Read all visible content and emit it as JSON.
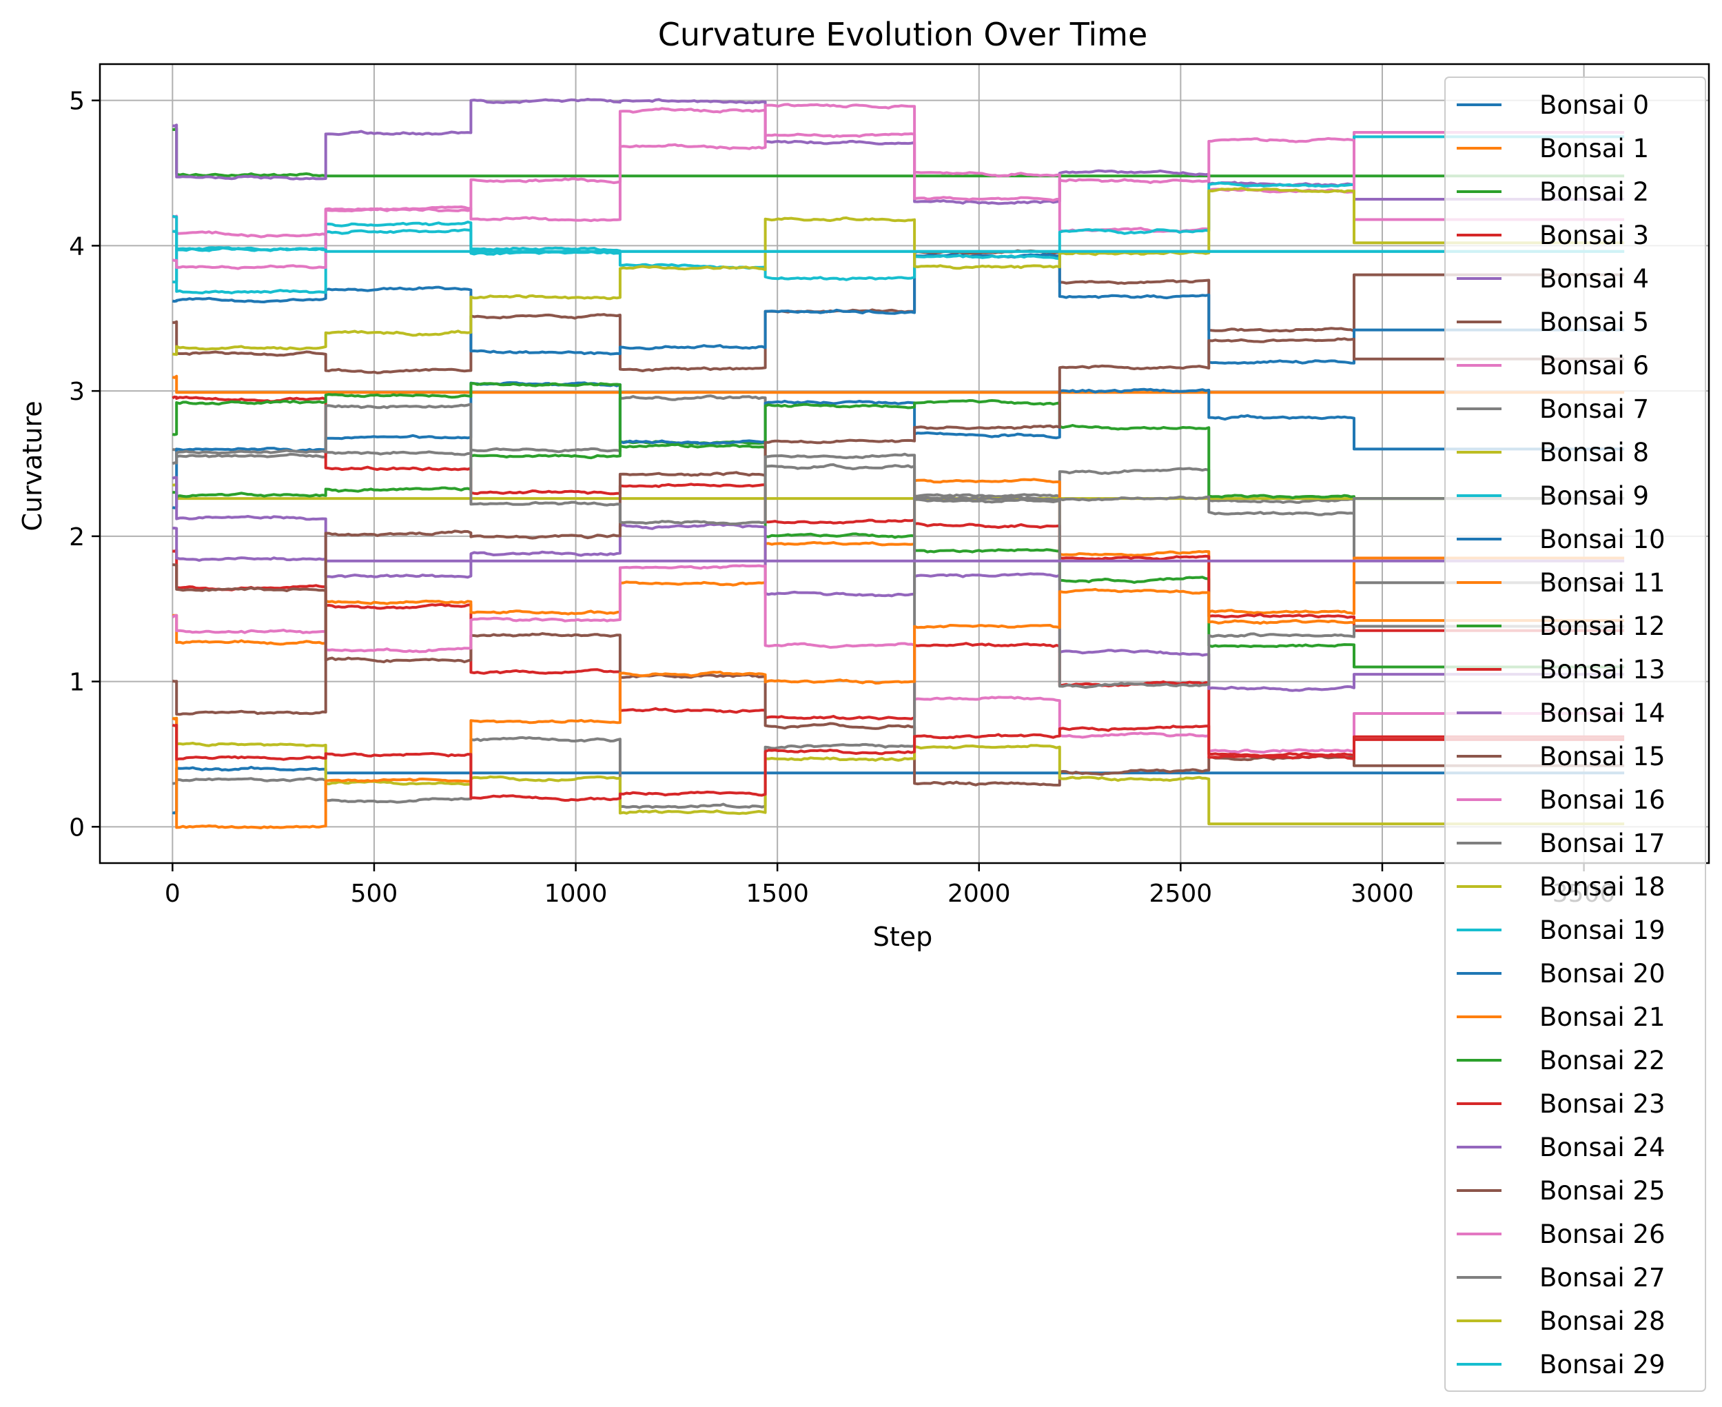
{
  "chart_data": {
    "type": "line",
    "title": "Curvature Evolution Over Time",
    "xlabel": "Step",
    "ylabel": "Curvature",
    "xlim": [
      -180,
      3810
    ],
    "ylim": [
      -0.25,
      5.25
    ],
    "xticks": [
      0,
      500,
      1000,
      1500,
      2000,
      2500,
      3000,
      3500
    ],
    "yticks": [
      0,
      1,
      2,
      3,
      4,
      5
    ],
    "grid": true,
    "legend_position": "right",
    "segment_boundaries": [
      0,
      10,
      380,
      740,
      1110,
      1470,
      1840,
      2200,
      2570,
      2930,
      3600
    ],
    "series": [
      {
        "name": "Bonsai 0",
        "color": "#1f77b4",
        "values": [
          0.1,
          0.4,
          0.37,
          0.37,
          0.37,
          0.37,
          0.37,
          0.37,
          0.37,
          0.37
        ]
      },
      {
        "name": "Bonsai 1",
        "color": "#ff7f0e",
        "values": [
          3.1,
          2.99,
          2.99,
          2.99,
          2.99,
          2.99,
          2.99,
          2.99,
          2.99,
          2.99
        ]
      },
      {
        "name": "Bonsai 2",
        "color": "#2ca02c",
        "values": [
          4.8,
          4.49,
          4.48,
          4.48,
          4.48,
          4.48,
          4.48,
          4.48,
          4.48,
          4.48
        ]
      },
      {
        "name": "Bonsai 3",
        "color": "#d62728",
        "values": [
          1.9,
          1.65,
          1.52,
          1.07,
          0.8,
          0.75,
          1.25,
          0.98,
          0.5,
          0.6
        ]
      },
      {
        "name": "Bonsai 4",
        "color": "#9467bd",
        "values": [
          4.83,
          4.47,
          4.77,
          5.0,
          4.99,
          4.71,
          4.3,
          4.5,
          4.42,
          4.32
        ]
      },
      {
        "name": "Bonsai 5",
        "color": "#8c564b",
        "values": [
          3.47,
          3.26,
          3.14,
          3.52,
          3.15,
          3.55,
          3.95,
          3.75,
          3.42,
          3.8
        ]
      },
      {
        "name": "Bonsai 6",
        "color": "#e377c2",
        "values": [
          4.2,
          4.08,
          4.25,
          4.45,
          4.93,
          4.76,
          4.5,
          4.1,
          4.38,
          4.78
        ]
      },
      {
        "name": "Bonsai 7",
        "color": "#7f7f7f",
        "values": [
          2.6,
          2.55,
          2.58,
          2.6,
          2.95,
          2.48,
          2.28,
          2.45,
          2.25,
          1.68
        ]
      },
      {
        "name": "Bonsai 8",
        "color": "#bcbd22",
        "values": [
          2.35,
          2.26,
          2.26,
          2.26,
          2.26,
          2.26,
          2.26,
          2.26,
          2.26,
          2.26
        ]
      },
      {
        "name": "Bonsai 9",
        "color": "#17becf",
        "values": [
          3.75,
          3.98,
          4.1,
          3.95,
          3.96,
          3.96,
          3.96,
          3.96,
          3.96,
          3.96
        ]
      },
      {
        "name": "Bonsai 10",
        "color": "#1f77b4",
        "values": [
          3.62,
          3.63,
          3.7,
          3.27,
          3.3,
          3.55,
          3.93,
          3.65,
          3.2,
          3.42
        ]
      },
      {
        "name": "Bonsai 11",
        "color": "#ff7f0e",
        "values": [
          1.45,
          1.27,
          1.55,
          1.48,
          1.68,
          1.95,
          2.38,
          1.88,
          1.48,
          1.85
        ]
      },
      {
        "name": "Bonsai 12",
        "color": "#2ca02c",
        "values": [
          2.3,
          2.28,
          2.32,
          2.55,
          2.65,
          2.0,
          1.9,
          1.7,
          1.25,
          1.1
        ]
      },
      {
        "name": "Bonsai 13",
        "color": "#d62728",
        "values": [
          2.95,
          2.95,
          2.47,
          2.3,
          2.35,
          2.1,
          2.08,
          1.85,
          1.45,
          1.35
        ]
      },
      {
        "name": "Bonsai 14",
        "color": "#9467bd",
        "values": [
          2.05,
          1.85,
          1.72,
          1.88,
          2.07,
          1.6,
          1.73,
          1.2,
          0.95,
          1.05
        ]
      },
      {
        "name": "Bonsai 15",
        "color": "#8c564b",
        "values": [
          1.8,
          1.63,
          1.15,
          1.32,
          1.03,
          0.7,
          0.3,
          0.38,
          0.48,
          0.42
        ]
      },
      {
        "name": "Bonsai 16",
        "color": "#e377c2",
        "values": [
          1.45,
          1.35,
          1.22,
          1.42,
          1.78,
          1.25,
          0.88,
          0.63,
          0.52,
          0.78
        ]
      },
      {
        "name": "Bonsai 17",
        "color": "#7f7f7f",
        "values": [
          0.3,
          0.32,
          0.18,
          0.6,
          0.14,
          0.55,
          2.26,
          0.97,
          1.32,
          1.38
        ]
      },
      {
        "name": "Bonsai 18",
        "color": "#bcbd22",
        "values": [
          0.75,
          0.57,
          0.3,
          0.33,
          0.1,
          0.47,
          0.55,
          0.33,
          0.02,
          0.02
        ]
      },
      {
        "name": "Bonsai 19",
        "color": "#17becf",
        "values": [
          4.1,
          3.68,
          4.15,
          3.98,
          3.86,
          3.78,
          3.92,
          4.1,
          4.42,
          4.75
        ]
      },
      {
        "name": "Bonsai 20",
        "color": "#1f77b4",
        "values": [
          2.2,
          2.6,
          2.68,
          3.05,
          2.65,
          2.92,
          2.7,
          3.0,
          2.82,
          2.6
        ]
      },
      {
        "name": "Bonsai 21",
        "color": "#ff7f0e",
        "values": [
          0.75,
          0.0,
          0.32,
          0.73,
          1.05,
          1.0,
          1.38,
          1.62,
          1.41,
          1.42
        ]
      },
      {
        "name": "Bonsai 22",
        "color": "#2ca02c",
        "values": [
          2.7,
          2.92,
          2.97,
          3.05,
          2.62,
          2.9,
          2.92,
          2.75,
          2.27,
          2.26
        ]
      },
      {
        "name": "Bonsai 23",
        "color": "#d62728",
        "values": [
          0.7,
          0.47,
          0.5,
          0.2,
          0.23,
          0.52,
          0.62,
          0.68,
          0.48,
          0.62
        ]
      },
      {
        "name": "Bonsai 24",
        "color": "#9467bd",
        "values": [
          2.4,
          2.12,
          1.83,
          1.83,
          1.83,
          1.83,
          1.83,
          1.83,
          1.83,
          1.83
        ]
      },
      {
        "name": "Bonsai 25",
        "color": "#8c564b",
        "values": [
          1.0,
          0.78,
          2.02,
          2.0,
          2.43,
          2.65,
          2.75,
          3.16,
          3.35,
          3.22
        ]
      },
      {
        "name": "Bonsai 26",
        "color": "#e377c2",
        "values": [
          3.9,
          3.85,
          4.25,
          4.18,
          4.68,
          4.97,
          4.32,
          4.45,
          4.72,
          4.18
        ]
      },
      {
        "name": "Bonsai 27",
        "color": "#7f7f7f",
        "values": [
          2.5,
          2.58,
          2.9,
          2.22,
          2.1,
          2.55,
          2.25,
          2.26,
          2.16,
          2.26
        ]
      },
      {
        "name": "Bonsai 28",
        "color": "#bcbd22",
        "values": [
          3.25,
          3.3,
          3.4,
          3.65,
          3.85,
          4.18,
          3.86,
          3.95,
          4.38,
          4.02
        ]
      },
      {
        "name": "Bonsai 29",
        "color": "#17becf",
        "values": [
          4.2,
          3.97,
          3.96,
          3.96,
          3.96,
          3.96,
          3.96,
          3.96,
          3.96,
          3.96
        ]
      }
    ]
  }
}
